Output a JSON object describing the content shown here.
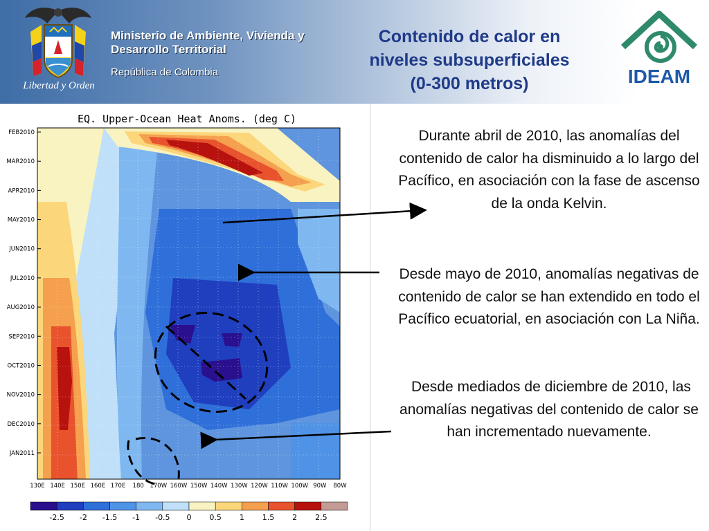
{
  "header": {
    "motto": "Libertad y Orden",
    "ministry_line1": "Ministerio de Ambiente, Vivienda y",
    "ministry_line2": "Desarrollo Territorial",
    "republic": "República de Colombia",
    "title_line1": "Contenido de calor en",
    "title_line2": "niveles subsuperficiales",
    "title_line3": "(0-300 metros)",
    "logo_text": "IDEAM",
    "logo_icon": "ideam-swirl-logo",
    "crest_icon": "colombia-coat-of-arms"
  },
  "colors": {
    "title": "#1f3a88",
    "ideam_green": "#2e8a6a",
    "ideam_blue": "#1e5aa8"
  },
  "chart_data": {
    "type": "heatmap",
    "title": "EQ. Upper-Ocean Heat Anoms. (deg C)",
    "y_tick_labels": [
      "FEB2010",
      "MAR2010",
      "APR2010",
      "MAY2010",
      "JUN2010",
      "JUL2010",
      "AUG2010",
      "SEP2010",
      "OCT2010",
      "NOV2010",
      "DEC2010",
      "JAN2011"
    ],
    "x_tick_labels": [
      "130E",
      "140E",
      "150E",
      "160E",
      "170E",
      "180",
      "170W",
      "160W",
      "150W",
      "140W",
      "130W",
      "120W",
      "110W",
      "100W",
      "90W",
      "80W"
    ],
    "colorbar_labels": [
      "-2.5",
      "-2",
      "-1.5",
      "-1",
      "-0.5",
      "0",
      "0.5",
      "1",
      "1.5",
      "2",
      "2.5"
    ],
    "colorbar_colors": [
      "#2a0f8e",
      "#1f3fbf",
      "#2f6fd9",
      "#4f93e6",
      "#7fb8f0",
      "#bfe0f8",
      "#f8f3c0",
      "#fbd67a",
      "#f5a04e",
      "#e8532d",
      "#b8120f",
      "#c49a94"
    ]
  },
  "text": {
    "p1": "Durante abril de 2010, las anomalías del contenido de calor ha disminuido a lo largo del Pacífico, en asociación con la fase de ascenso de la onda Kelvin.",
    "p2": "Desde mayo de 2010, anomalías negativas de contenido de calor se han extendido en todo el Pacífico ecuatorial, en asociación con La Niña.",
    "p3": " Desde mediados de diciembre de 2010, las anomalías negativas del contenido de calor se han incrementado nuevamente."
  }
}
